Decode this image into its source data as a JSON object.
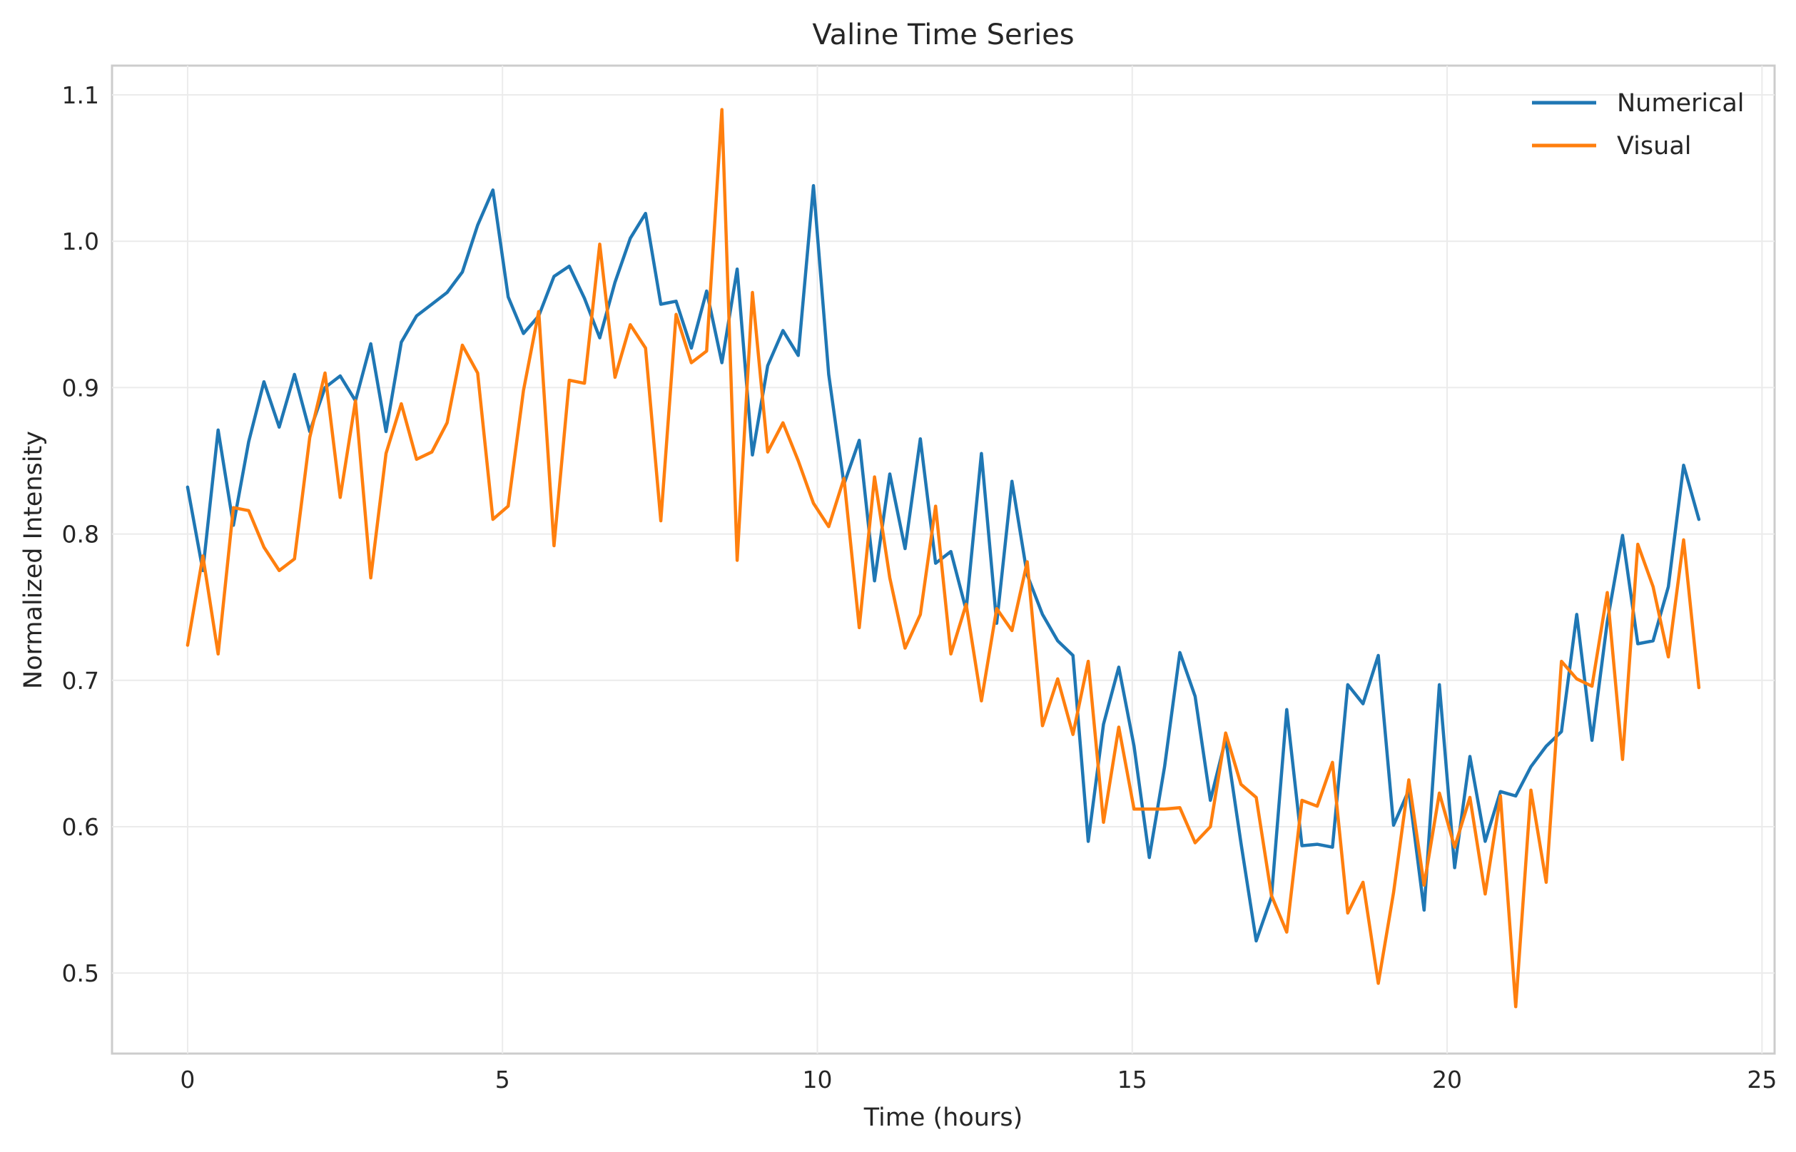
{
  "chart_data": {
    "type": "line",
    "title": "Valine Time Series",
    "xlabel": "Time (hours)",
    "ylabel": "Normalized Intensity",
    "xlim": [
      -1.2,
      25.2
    ],
    "ylim": [
      0.445,
      1.12
    ],
    "xticks": [
      0,
      5,
      10,
      15,
      20,
      25
    ],
    "yticks": [
      0.5,
      0.6,
      0.7,
      0.8,
      0.9,
      1.0,
      1.1
    ],
    "xtick_labels": [
      "0",
      "5",
      "10",
      "15",
      "20",
      "25"
    ],
    "ytick_labels": [
      "0.5",
      "0.6",
      "0.7",
      "0.8",
      "0.9",
      "1.0",
      "1.1"
    ],
    "grid": true,
    "legend_position": "top-right",
    "x_start": 0,
    "x_step": 0.2424,
    "series": [
      {
        "name": "Numerical",
        "color": "#1f77b4",
        "values": [
          0.832,
          0.775,
          0.871,
          0.806,
          0.863,
          0.904,
          0.873,
          0.909,
          0.87,
          0.9,
          0.908,
          0.891,
          0.93,
          0.87,
          0.931,
          0.949,
          0.957,
          0.965,
          0.979,
          1.011,
          1.035,
          0.962,
          0.937,
          0.949,
          0.976,
          0.983,
          0.961,
          0.934,
          0.972,
          1.002,
          1.019,
          0.957,
          0.959,
          0.927,
          0.966,
          0.917,
          0.981,
          0.854,
          0.915,
          0.939,
          0.922,
          1.038,
          0.909,
          0.834,
          0.864,
          0.768,
          0.841,
          0.79,
          0.865,
          0.78,
          0.788,
          0.748,
          0.855,
          0.739,
          0.836,
          0.772,
          0.745,
          0.727,
          0.717,
          0.59,
          0.67,
          0.709,
          0.655,
          0.579,
          0.641,
          0.719,
          0.689,
          0.618,
          0.66,
          0.589,
          0.522,
          0.552,
          0.68,
          0.587,
          0.588,
          0.586,
          0.697,
          0.684,
          0.717,
          0.601,
          0.625,
          0.543,
          0.697,
          0.572,
          0.648,
          0.59,
          0.624,
          0.621,
          0.641,
          0.655,
          0.665,
          0.745,
          0.659,
          0.74,
          0.799,
          0.725,
          0.727,
          0.764,
          0.847,
          0.81
        ]
      },
      {
        "name": "Visual",
        "color": "#ff7f0e",
        "values": [
          0.724,
          0.785,
          0.718,
          0.818,
          0.816,
          0.791,
          0.775,
          0.783,
          0.866,
          0.91,
          0.825,
          0.891,
          0.77,
          0.855,
          0.889,
          0.851,
          0.856,
          0.876,
          0.929,
          0.91,
          0.81,
          0.819,
          0.898,
          0.952,
          0.792,
          0.905,
          0.903,
          0.998,
          0.907,
          0.943,
          0.927,
          0.809,
          0.95,
          0.917,
          0.925,
          1.09,
          0.782,
          0.965,
          0.856,
          0.876,
          0.85,
          0.821,
          0.805,
          0.838,
          0.736,
          0.839,
          0.77,
          0.722,
          0.745,
          0.819,
          0.718,
          0.752,
          0.686,
          0.749,
          0.734,
          0.781,
          0.669,
          0.701,
          0.663,
          0.713,
          0.603,
          0.668,
          0.612,
          0.612,
          0.612,
          0.613,
          0.589,
          0.6,
          0.664,
          0.629,
          0.62,
          0.553,
          0.528,
          0.618,
          0.614,
          0.644,
          0.541,
          0.562,
          0.493,
          0.555,
          0.632,
          0.56,
          0.623,
          0.586,
          0.62,
          0.554,
          0.621,
          0.477,
          0.625,
          0.562,
          0.713,
          0.701,
          0.696,
          0.76,
          0.646,
          0.793,
          0.764,
          0.716,
          0.796,
          0.695
        ]
      }
    ]
  }
}
